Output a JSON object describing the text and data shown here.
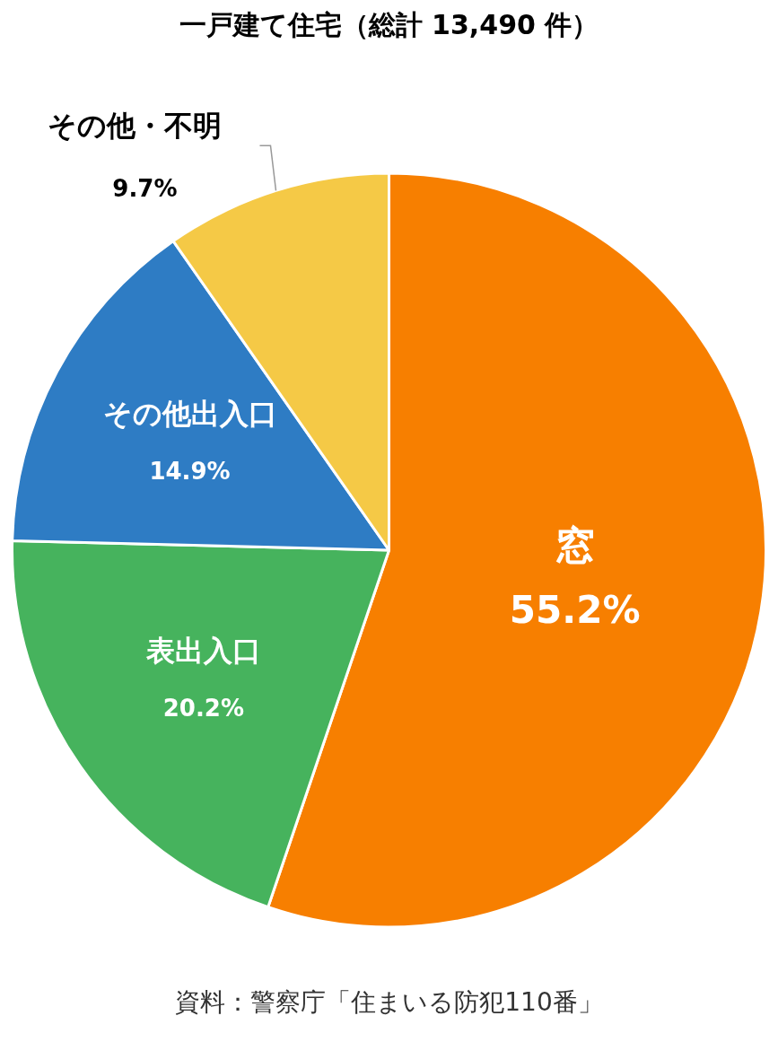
{
  "chart_data": {
    "type": "pie",
    "title": "一戸建て住宅（総計 13,490 件）",
    "categories": [
      "窓",
      "表出入口",
      "その他出入口",
      "その他・不明"
    ],
    "values": [
      55.2,
      20.2,
      14.9,
      9.7
    ],
    "colors": [
      "#f77f00",
      "#46b35d",
      "#2e7cc4",
      "#f5c946"
    ],
    "value_labels": [
      "55.2%",
      "20.2%",
      "14.9%",
      "9.7%"
    ],
    "legend": false,
    "annotations": [
      "資料：警察庁「住まいる防犯110番」"
    ]
  }
}
